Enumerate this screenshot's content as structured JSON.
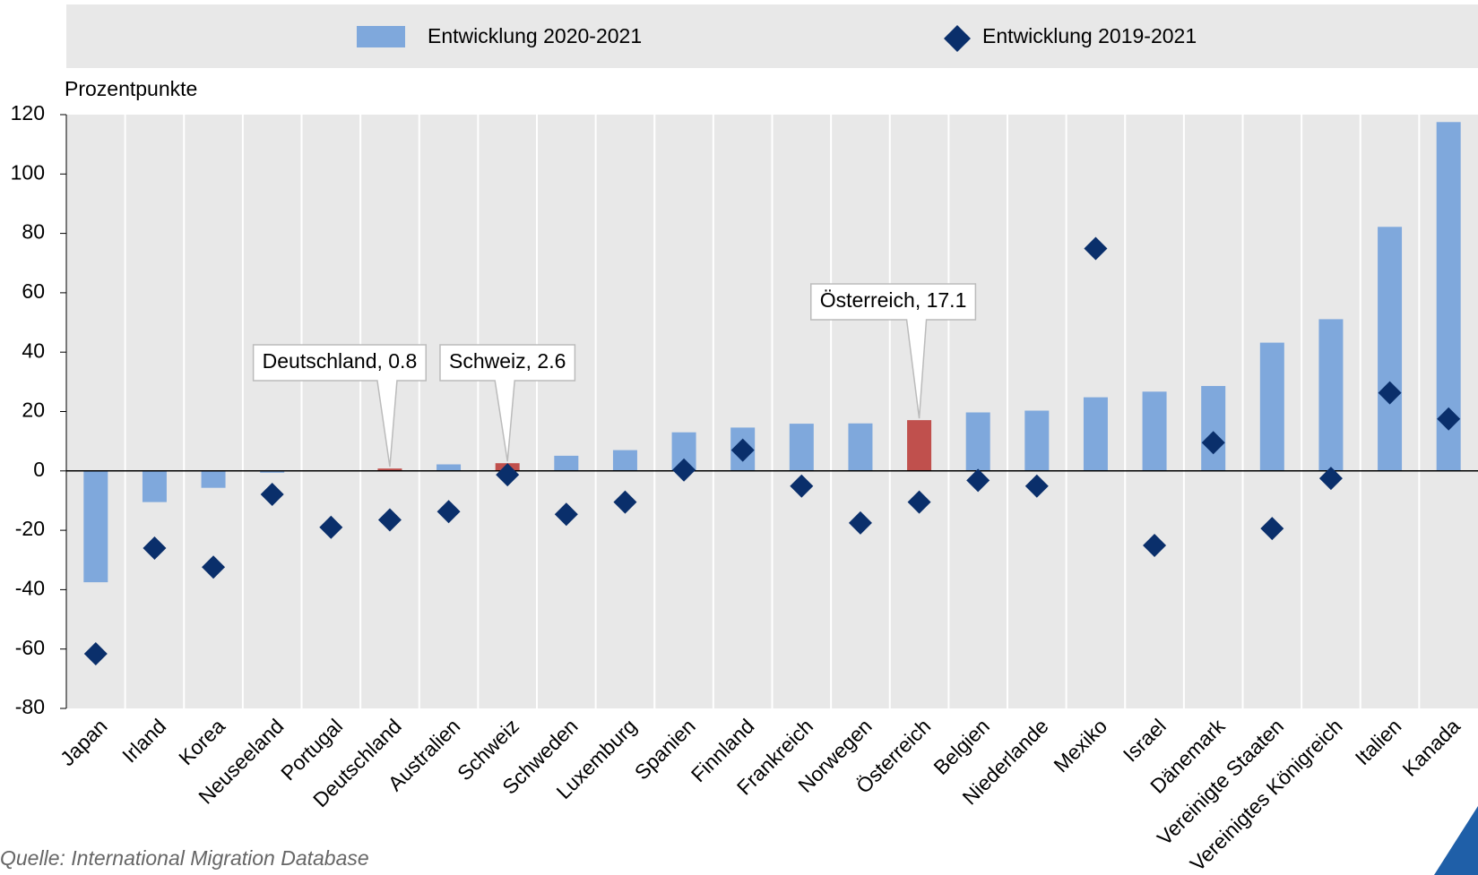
{
  "chart_data": {
    "type": "bar",
    "y_label": "Prozentpunkte",
    "source": "Quelle: International Migration Database",
    "categories": [
      "Japan",
      "Irland",
      "Korea",
      "Neuseeland",
      "Portugal",
      "Deutschland",
      "Australien",
      "Schweiz",
      "Schweden",
      "Luxemburg",
      "Spanien",
      "Finnland",
      "Frankreich",
      "Norwegen",
      "Österreich",
      "Belgien",
      "Niederlande",
      "Mexiko",
      "Israel",
      "Dänemark",
      "Vereinigte Staaten",
      "Vereinigtes Königreich",
      "Italien",
      "Kanada"
    ],
    "series": [
      {
        "name": "Entwicklung 2020-2021",
        "type": "bar",
        "color": "#7fa8dc",
        "highlight_color": "#c0504d",
        "values": [
          -37.5,
          -10.5,
          -5.7,
          -0.6,
          0,
          0.8,
          2.2,
          2.6,
          5.1,
          7.0,
          13.0,
          14.6,
          15.9,
          16.0,
          17.1,
          19.7,
          20.3,
          24.8,
          26.7,
          28.6,
          43.2,
          51.1,
          82.2,
          117.5
        ],
        "value_labels": [
          null,
          null,
          null,
          null,
          null,
          "Deutschland, 0.8",
          null,
          "Schweiz, 2.6",
          null,
          null,
          null,
          null,
          null,
          null,
          "Österreich, 17.1",
          null,
          null,
          null,
          null,
          null,
          null,
          null,
          null,
          null
        ]
      },
      {
        "name": "Entwicklung 2019-2021",
        "type": "scatter",
        "color": "#0a2f6b",
        "values": [
          -61.6,
          -26.0,
          -32.4,
          -7.9,
          -19.0,
          -16.5,
          -13.7,
          -1.3,
          -14.6,
          -10.5,
          0.3,
          7.0,
          -5.1,
          -17.5,
          -10.5,
          -3.2,
          -5.1,
          74.9,
          -25.1,
          9.5,
          -19.4,
          -2.5,
          26.3,
          17.5
        ]
      }
    ],
    "ylim": [
      -80,
      120
    ],
    "yticks": [
      -80,
      -60,
      -40,
      -20,
      0,
      20,
      40,
      60,
      80,
      100,
      120
    ]
  }
}
